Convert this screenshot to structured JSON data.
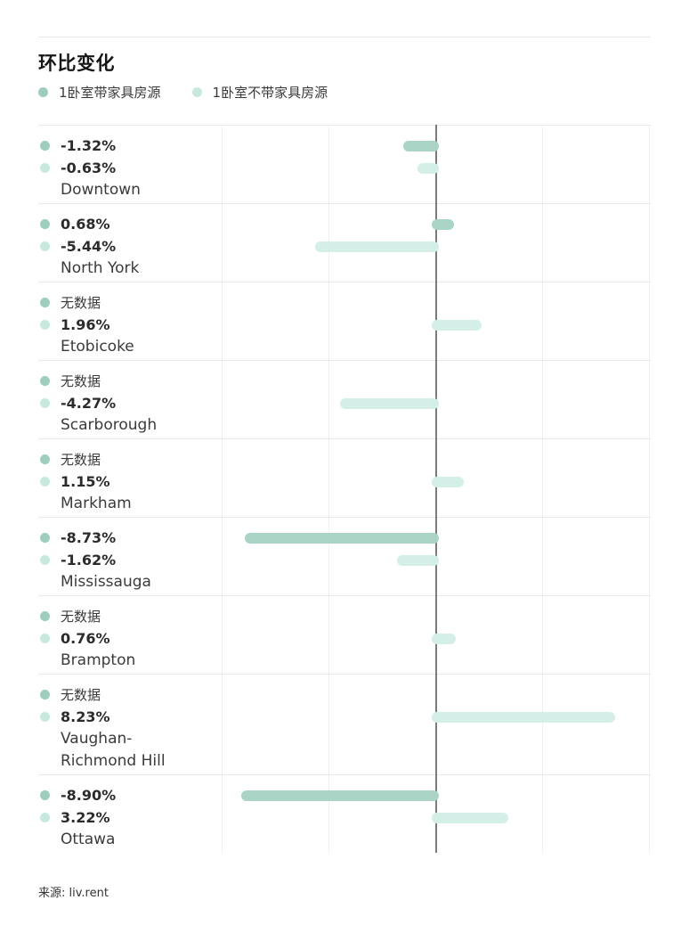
{
  "page": {
    "title": "环比变化",
    "source": "来源: liv.rent"
  },
  "legend": [
    {
      "label": "1卧室带家具房源",
      "color": "#9ccebf"
    },
    {
      "label": "1卧室不带家具房源",
      "color": "#c6e9de"
    }
  ],
  "no_data_label": "无数据",
  "chart_data": {
    "type": "bar",
    "orientation": "horizontal",
    "title": "环比变化",
    "unit": "%",
    "xlim": [
      -10,
      10
    ],
    "gridline_step": 5,
    "grid": true,
    "zero_baseline": true,
    "series": [
      {
        "name": "1卧室带家具房源",
        "color": "#a9d4c6"
      },
      {
        "name": "1卧室不带家具房源",
        "color": "#d3efe7"
      }
    ],
    "rows": [
      {
        "city": "Downtown",
        "furnished": -1.32,
        "furnished_label": "-1.32%",
        "unfurnished": -0.63,
        "unfurnished_label": "-0.63%"
      },
      {
        "city": "North York",
        "furnished": 0.68,
        "furnished_label": "0.68%",
        "unfurnished": -5.44,
        "unfurnished_label": "-5.44%"
      },
      {
        "city": "Etobicoke",
        "furnished": null,
        "furnished_label": "无数据",
        "unfurnished": 1.96,
        "unfurnished_label": "1.96%"
      },
      {
        "city": "Scarborough",
        "furnished": null,
        "furnished_label": "无数据",
        "unfurnished": -4.27,
        "unfurnished_label": "-4.27%"
      },
      {
        "city": "Markham",
        "furnished": null,
        "furnished_label": "无数据",
        "unfurnished": 1.15,
        "unfurnished_label": "1.15%"
      },
      {
        "city": "Mississauga",
        "furnished": -8.73,
        "furnished_label": "-8.73%",
        "unfurnished": -1.62,
        "unfurnished_label": "-1.62%"
      },
      {
        "city": "Brampton",
        "furnished": null,
        "furnished_label": "无数据",
        "unfurnished": 0.76,
        "unfurnished_label": "0.76%"
      },
      {
        "city": "Vaughan-Richmond Hill",
        "furnished": null,
        "furnished_label": "无数据",
        "unfurnished": 8.23,
        "unfurnished_label": "8.23%"
      },
      {
        "city": "Ottawa",
        "furnished": -8.9,
        "furnished_label": "-8.90%",
        "unfurnished": 3.22,
        "unfurnished_label": "3.22%"
      }
    ]
  }
}
